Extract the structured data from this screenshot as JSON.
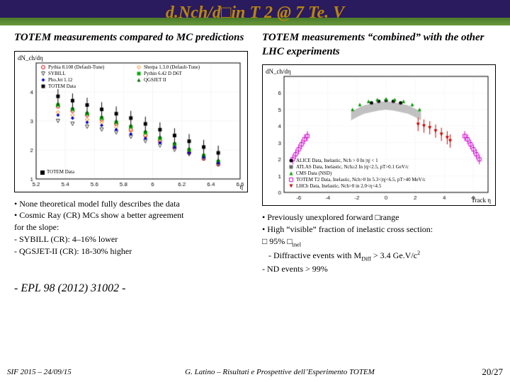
{
  "header": {
    "title": "d.Nch/d□in T 2 @ 7 Te. V"
  },
  "left": {
    "subtitle": "TOTEM measurements compared to MC predictions",
    "chart": {
      "type": "scatter",
      "ylabel": "dN_ch/dη",
      "xlabel": "η",
      "xlim": [
        5.2,
        6.6
      ],
      "ylim": [
        1,
        5
      ],
      "xticks": [
        "5.2",
        "5.4",
        "5.6",
        "5.8",
        "6",
        "6.2",
        "6.4",
        "6.6"
      ],
      "yticks": [
        "1",
        "2",
        "3",
        "4"
      ],
      "grid_color": "#e8e8e8",
      "series": [
        {
          "name": "Pythia 8.108 (Default-Tune)",
          "color": "#cc0000",
          "marker": "circle-open",
          "y": [
            3.5,
            3.35,
            3.2,
            3.05,
            2.9,
            2.7,
            2.5,
            2.3,
            2.1,
            1.9,
            1.7,
            1.5
          ]
        },
        {
          "name": "Sherpa 1.3.0 (Default-Tune)",
          "color": "#ee7700",
          "marker": "diamond-open",
          "y": [
            3.3,
            3.2,
            3.05,
            2.95,
            2.8,
            2.65,
            2.5,
            2.35,
            2.15,
            1.95,
            1.75,
            1.55
          ]
        },
        {
          "name": "SYBILL",
          "color": "#444444",
          "marker": "triangle-down-open",
          "y": [
            3.0,
            2.9,
            2.8,
            2.7,
            2.6,
            2.45,
            2.3,
            2.15,
            2.0,
            1.85,
            1.7,
            1.5
          ]
        },
        {
          "name": "Pythin 6.42 D D6T",
          "color": "#00aa00",
          "marker": "square",
          "y": [
            3.55,
            3.4,
            3.25,
            3.1,
            2.95,
            2.8,
            2.6,
            2.4,
            2.2,
            2.0,
            1.8,
            1.6
          ]
        },
        {
          "name": "Pho.Jet 1.12",
          "color": "#0000cc",
          "marker": "diamond",
          "y": [
            3.2,
            3.1,
            2.95,
            2.85,
            2.7,
            2.55,
            2.4,
            2.25,
            2.1,
            1.9,
            1.75,
            1.55
          ]
        },
        {
          "name": "QGSJET II",
          "color": "#006600",
          "marker": "triangle-up",
          "y": [
            3.6,
            3.45,
            3.3,
            3.15,
            3.0,
            2.85,
            2.65,
            2.45,
            2.25,
            2.05,
            1.85,
            1.65
          ]
        },
        {
          "name": "TOTEM Data",
          "color": "#000000",
          "marker": "square",
          "y": [
            3.85,
            3.7,
            3.55,
            3.4,
            3.25,
            3.1,
            2.9,
            2.7,
            2.5,
            2.3,
            2.1,
            1.9
          ],
          "err": 0.25
        }
      ],
      "x_positions": [
        5.35,
        5.45,
        5.55,
        5.65,
        5.75,
        5.85,
        5.95,
        6.05,
        6.15,
        6.25,
        6.35,
        6.45
      ]
    },
    "bullets": [
      "• None theoretical model fully describes the data",
      "• Cosmic Ray (CR) MCs show a better agreement",
      "  for the slope:",
      "   - SYBILL (CR): 4–16% lower",
      "   - QGSJET-II (CR): 18-30% higher"
    ]
  },
  "right": {
    "subtitle": "TOTEM measurements “combined” with the other LHC experiments",
    "chart": {
      "type": "scatter",
      "ylabel": "dN_ch/dη",
      "xlabel": "Track η",
      "xlim": [
        -7,
        7
      ],
      "ylim": [
        0,
        7
      ],
      "xticks": [
        "-6",
        "-4",
        "-2",
        "0",
        "2",
        "4",
        "6"
      ],
      "yticks": [
        "0",
        "1",
        "2",
        "3",
        "4",
        "5",
        "6"
      ],
      "grid_color": "#f0f0f0",
      "series": [
        {
          "name": "ALICE Data, Inelastic, Nch > 0 In |η| < 1",
          "color": "#000000",
          "marker": "circle",
          "points": [
            [
              -1,
              5.4
            ],
            [
              -0.5,
              5.5
            ],
            [
              0,
              5.55
            ],
            [
              0.5,
              5.5
            ],
            [
              1,
              5.4
            ]
          ]
        },
        {
          "name": "ATLAS Data, Inelastic, Nch≥2 In |η|<2.5, pT>0.1 GeV/c",
          "color": "#666666",
          "marker": "band",
          "points": [
            [
              -2.4,
              4.6
            ],
            [
              -2,
              4.8
            ],
            [
              -1.5,
              5.0
            ],
            [
              -1,
              5.1
            ],
            [
              -0.5,
              5.2
            ],
            [
              0,
              5.25
            ],
            [
              0.5,
              5.2
            ],
            [
              1,
              5.1
            ],
            [
              1.5,
              5.0
            ],
            [
              2,
              4.8
            ],
            [
              2.4,
              4.6
            ]
          ]
        },
        {
          "name": "CMS Data (NSD)",
          "color": "#009900",
          "marker": "triangle",
          "points": [
            [
              -2.3,
              5.0
            ],
            [
              -1.8,
              5.3
            ],
            [
              -1.2,
              5.5
            ],
            [
              -0.6,
              5.6
            ],
            [
              0,
              5.65
            ],
            [
              0.6,
              5.6
            ],
            [
              1.2,
              5.5
            ],
            [
              1.8,
              5.3
            ],
            [
              2.3,
              5.0
            ]
          ]
        },
        {
          "name": "TOTEM T2 Data, Inelastic, Nch>0 In 5.3<|η|<6.5, pT>40 MeV/c",
          "color": "#cc00cc",
          "marker": "square-open",
          "points": [
            [
              -6.4,
              2.0
            ],
            [
              -6.2,
              2.3
            ],
            [
              -6.0,
              2.6
            ],
            [
              -5.8,
              2.9
            ],
            [
              -5.6,
              3.2
            ],
            [
              -5.4,
              3.4
            ],
            [
              5.4,
              3.4
            ],
            [
              5.6,
              3.2
            ],
            [
              5.8,
              2.9
            ],
            [
              6.0,
              2.6
            ],
            [
              6.2,
              2.3
            ],
            [
              6.4,
              2.0
            ]
          ],
          "err": 0.3
        },
        {
          "name": "LHCb Data, Inelastic, Nch>0 in 2.0<η<4.5",
          "color": "#cc0000",
          "marker": "triangle-down",
          "points": [
            [
              2.2,
              4.1
            ],
            [
              2.6,
              4.0
            ],
            [
              3.0,
              3.9
            ],
            [
              3.4,
              3.7
            ],
            [
              3.8,
              3.5
            ],
            [
              4.2,
              3.3
            ],
            [
              4.4,
              3.1
            ]
          ],
          "err": 0.4
        }
      ]
    },
    "bullets": [
      "• Previously unexplored forward □range",
      "• High “visible” fraction of inelastic cross section:",
      "□ 95% □inel",
      "   - Diffractive events with MDiff > 3.4 Ge.V/c2",
      "   - ND events > 99%"
    ]
  },
  "reference": "- EPL 98 (2012) 31002 -",
  "footer": {
    "left": "SIF 2015 – 24/09/15",
    "center": "G. Latino – Risultati e Prospettive dell’Esperimento TOTEM",
    "right": "20/27"
  }
}
